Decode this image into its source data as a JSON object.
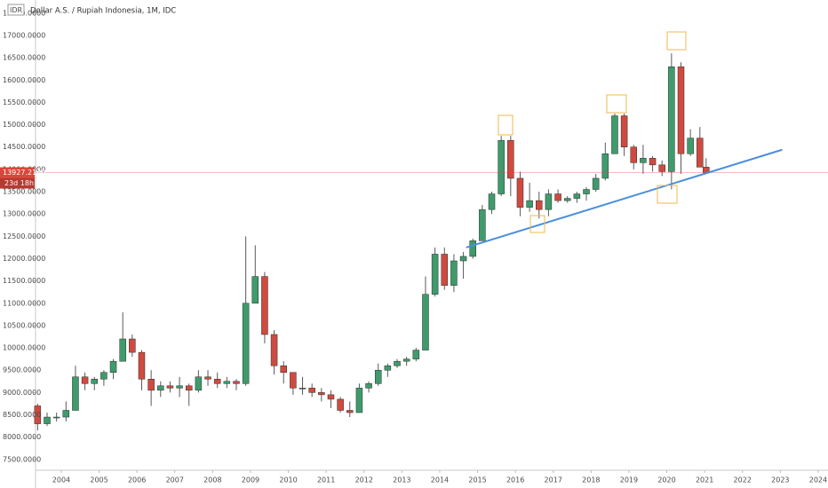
{
  "chart_data": {
    "type": "candlestick",
    "title": "Dollar A.S. / Rupiah Indonesia, 1M, IDC",
    "currency_label": "IDR",
    "up_color": "#3f9b6c",
    "down_color": "#cf4a3f",
    "x": [
      2003.375,
      2003.625,
      2003.875,
      2004.125,
      2004.375,
      2004.625,
      2004.875,
      2005.125,
      2005.375,
      2005.625,
      2005.875,
      2006.125,
      2006.375,
      2006.625,
      2006.875,
      2007.125,
      2007.375,
      2007.625,
      2007.875,
      2008.125,
      2008.375,
      2008.625,
      2008.875,
      2009.125,
      2009.375,
      2009.625,
      2009.875,
      2010.125,
      2010.375,
      2010.625,
      2010.875,
      2011.125,
      2011.375,
      2011.625,
      2011.875,
      2012.125,
      2012.375,
      2012.625,
      2012.875,
      2013.125,
      2013.375,
      2013.625,
      2013.875,
      2014.125,
      2014.375,
      2014.625,
      2014.875,
      2015.125,
      2015.375,
      2015.625,
      2015.875,
      2016.125,
      2016.375,
      2016.625,
      2016.875,
      2017.125,
      2017.375,
      2017.625,
      2017.875,
      2018.125,
      2018.375,
      2018.625,
      2018.875,
      2019.125,
      2019.375,
      2019.625,
      2019.875,
      2020.125,
      2020.375,
      2020.625,
      2020.875,
      2021.04
    ],
    "open": [
      8700,
      8300,
      8450,
      8450,
      8600,
      9350,
      9200,
      9300,
      9450,
      9700,
      10200,
      9900,
      9300,
      9050,
      9150,
      9100,
      9150,
      9050,
      9350,
      9300,
      9200,
      9250,
      9200,
      11000,
      11600,
      10300,
      9600,
      9450,
      9100,
      9100,
      9000,
      8950,
      8850,
      8600,
      8550,
      9100,
      9200,
      9500,
      9600,
      9700,
      9750,
      9950,
      11200,
      12100,
      11400,
      11950,
      12050,
      12400,
      13100,
      13450,
      14650,
      13800,
      13150,
      13300,
      13100,
      13450,
      13300,
      13350,
      13450,
      13550,
      13800,
      14350,
      15200,
      14500,
      14150,
      14250,
      14100,
      13950,
      16300,
      14350,
      14700,
      14050
    ],
    "high": [
      8750,
      8550,
      8550,
      8800,
      9600,
      9450,
      9350,
      9500,
      9750,
      10800,
      10300,
      9950,
      9500,
      9250,
      9250,
      9350,
      9200,
      9500,
      9500,
      9450,
      9350,
      9300,
      12500,
      12300,
      11700,
      10400,
      9700,
      9450,
      9350,
      9200,
      9100,
      9050,
      8900,
      8800,
      9200,
      9250,
      9650,
      9650,
      9750,
      9800,
      10000,
      11600,
      12250,
      12250,
      12100,
      12150,
      12450,
      13200,
      13500,
      14750,
      14750,
      13950,
      13700,
      13500,
      13550,
      13550,
      13400,
      13500,
      13600,
      13900,
      14600,
      15250,
      15250,
      14550,
      14550,
      14300,
      14200,
      16600,
      16400,
      14900,
      14950,
      14250
    ],
    "low": [
      8150,
      8250,
      8350,
      8350,
      8600,
      9050,
      9050,
      9150,
      9300,
      9700,
      9800,
      9050,
      8700,
      8900,
      9000,
      8900,
      8700,
      9000,
      9150,
      9100,
      9100,
      9050,
      9150,
      11000,
      10100,
      9400,
      9200,
      8950,
      8950,
      8900,
      8800,
      8650,
      8550,
      8450,
      8550,
      9000,
      9150,
      9350,
      9550,
      9600,
      9700,
      9950,
      11150,
      11300,
      11250,
      11550,
      12000,
      12400,
      13000,
      13400,
      13400,
      12950,
      13050,
      12900,
      12950,
      13250,
      13250,
      13250,
      13300,
      13500,
      13750,
      14350,
      14300,
      14000,
      13900,
      13950,
      13850,
      13550,
      13900,
      14300,
      14050,
      13900
    ],
    "close": [
      8300,
      8450,
      8450,
      8600,
      9350,
      9200,
      9300,
      9450,
      9700,
      10200,
      9900,
      9300,
      9050,
      9150,
      9100,
      9150,
      9050,
      9350,
      9300,
      9200,
      9250,
      9200,
      11000,
      11600,
      10300,
      9600,
      9450,
      9100,
      9100,
      9000,
      8950,
      8850,
      8600,
      8550,
      9100,
      9200,
      9500,
      9600,
      9700,
      9750,
      9950,
      11200,
      12100,
      11400,
      11950,
      12050,
      12400,
      13100,
      13450,
      14650,
      13800,
      13150,
      13300,
      13100,
      13450,
      13300,
      13350,
      13450,
      13550,
      13800,
      14350,
      15200,
      14500,
      14150,
      14250,
      14100,
      13950,
      16300,
      14350,
      14700,
      14050,
      13927.214
    ],
    "xlim": [
      2003.32,
      2024.26
    ],
    "ylim": [
      7258,
      17795
    ],
    "xticks": [
      2004,
      2005,
      2006,
      2007,
      2008,
      2009,
      2010,
      2011,
      2012,
      2013,
      2014,
      2015,
      2016,
      2017,
      2018,
      2019,
      2020,
      2021,
      2022,
      2023,
      2024
    ],
    "yticks": [
      {
        "value": 7500,
        "label": "7500.0000"
      },
      {
        "value": 8000,
        "label": "8000.0000"
      },
      {
        "value": 8500,
        "label": "8500.0000"
      },
      {
        "value": 9000,
        "label": "9000.0000"
      },
      {
        "value": 9500,
        "label": "9500.0000"
      },
      {
        "value": 10000,
        "label": "10000.0000"
      },
      {
        "value": 10500,
        "label": "10500.0000"
      },
      {
        "value": 11000,
        "label": "11000.0000"
      },
      {
        "value": 11500,
        "label": "11500.0000"
      },
      {
        "value": 12000,
        "label": "12000.0000"
      },
      {
        "value": 12500,
        "label": "12500.0000"
      },
      {
        "value": 13000,
        "label": "13000.0000"
      },
      {
        "value": 13500,
        "label": "13500.0000"
      },
      {
        "value": 14000,
        "label": "14000.0000"
      },
      {
        "value": 14500,
        "label": "14500.0000"
      },
      {
        "value": 15000,
        "label": "15000.0000"
      },
      {
        "value": 15500,
        "label": "15500.0000"
      },
      {
        "value": 16000,
        "label": "16000.0000"
      },
      {
        "value": 16500,
        "label": "16500.0000"
      },
      {
        "value": 17000,
        "label": "17000.0000"
      },
      {
        "value": 17500,
        "label": "17500.0000"
      }
    ],
    "grid": false,
    "trendline": {
      "x": [
        2014.7,
        2023.05
      ],
      "y": [
        12250,
        14440
      ],
      "color": "#4a8fdc"
    },
    "last_price": {
      "value": 13927.214,
      "label": "13927.2140",
      "color": "#d9473b"
    },
    "countdown": "23d 18h"
  }
}
